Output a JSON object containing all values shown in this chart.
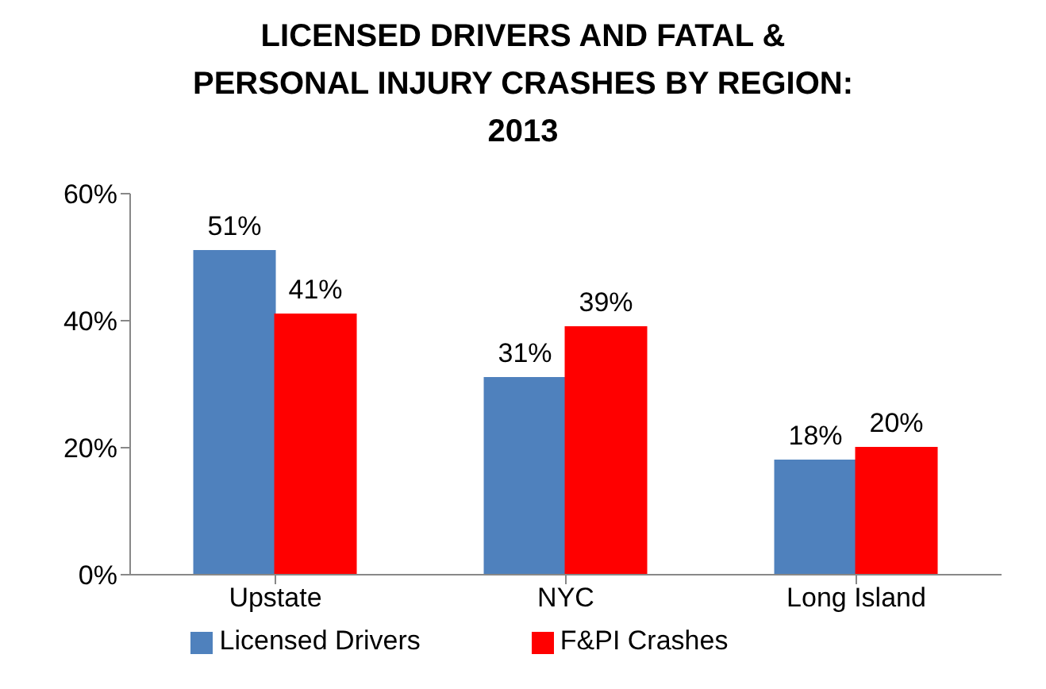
{
  "chart_data": {
    "type": "bar",
    "title": "LICENSED DRIVERS AND FATAL & PERSONAL INJURY CRASHES BY REGION: 2013",
    "categories": [
      "Upstate",
      "NYC",
      "Long Island"
    ],
    "series": [
      {
        "name": "Licensed Drivers",
        "color": "#4f81bd",
        "values": [
          51,
          31,
          18
        ],
        "value_labels": [
          "51%",
          "31%",
          "18%"
        ]
      },
      {
        "name": "F&PI Crashes",
        "color": "#ff0000",
        "values": [
          41,
          39,
          20
        ],
        "value_labels": [
          "41%",
          "39%",
          "20%"
        ]
      }
    ],
    "ylim": [
      0,
      60
    ],
    "yticks": [
      {
        "value": 0,
        "label": "0%"
      },
      {
        "value": 20,
        "label": "20%"
      },
      {
        "value": 40,
        "label": "40%"
      },
      {
        "value": 60,
        "label": "60%"
      }
    ],
    "grid": false,
    "legend": "bottom"
  }
}
